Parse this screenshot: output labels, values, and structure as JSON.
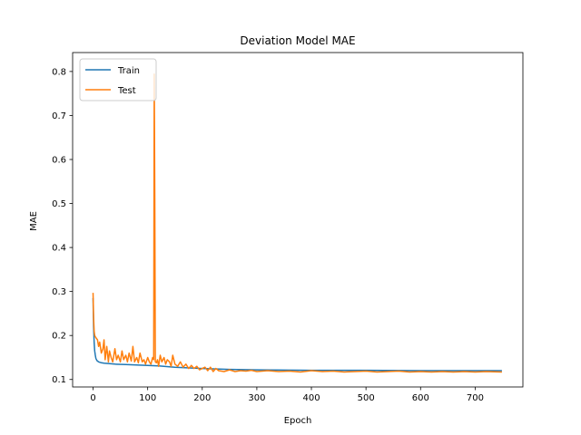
{
  "chart_data": {
    "type": "line",
    "title": "Deviation Model MAE",
    "xlabel": "Epoch",
    "ylabel": "MAE",
    "xlim": [
      -37.5,
      787.5
    ],
    "ylim": [
      0.083,
      0.843
    ],
    "xticks": [
      0,
      100,
      200,
      300,
      400,
      500,
      600,
      700
    ],
    "yticks": [
      0.1,
      0.2,
      0.3,
      0.4,
      0.5,
      0.6,
      0.7,
      0.8
    ],
    "grid": false,
    "legend": "upper left",
    "series": [
      {
        "name": "Train",
        "color": "#1f77b4",
        "x": [
          0,
          1,
          2,
          3,
          4,
          5,
          7,
          10,
          15,
          20,
          30,
          40,
          60,
          80,
          100,
          120,
          150,
          200,
          250,
          300,
          400,
          500,
          600,
          700,
          749
        ],
        "y": [
          0.285,
          0.22,
          0.185,
          0.165,
          0.155,
          0.148,
          0.143,
          0.14,
          0.138,
          0.137,
          0.136,
          0.135,
          0.134,
          0.133,
          0.132,
          0.131,
          0.128,
          0.125,
          0.123,
          0.122,
          0.121,
          0.121,
          0.12,
          0.12,
          0.12
        ]
      },
      {
        "name": "Test",
        "color": "#ff7f0e",
        "x": [
          0,
          1,
          2,
          3,
          5,
          8,
          10,
          12,
          15,
          18,
          20,
          22,
          25,
          28,
          30,
          33,
          36,
          40,
          43,
          46,
          50,
          53,
          56,
          60,
          63,
          66,
          70,
          73,
          76,
          80,
          83,
          86,
          90,
          93,
          96,
          100,
          103,
          106,
          109,
          111,
          112,
          113,
          114,
          116,
          118,
          120,
          123,
          126,
          130,
          133,
          136,
          140,
          143,
          146,
          150,
          155,
          160,
          165,
          170,
          175,
          180,
          185,
          190,
          195,
          200,
          205,
          210,
          215,
          220,
          225,
          230,
          240,
          250,
          260,
          270,
          280,
          290,
          300,
          320,
          340,
          360,
          380,
          400,
          420,
          440,
          460,
          480,
          500,
          520,
          540,
          560,
          580,
          600,
          620,
          640,
          660,
          680,
          700,
          720,
          749
        ],
        "y": [
          0.297,
          0.24,
          0.21,
          0.2,
          0.195,
          0.19,
          0.175,
          0.185,
          0.16,
          0.17,
          0.19,
          0.145,
          0.175,
          0.14,
          0.165,
          0.15,
          0.14,
          0.17,
          0.145,
          0.155,
          0.14,
          0.165,
          0.145,
          0.155,
          0.14,
          0.16,
          0.142,
          0.175,
          0.14,
          0.15,
          0.138,
          0.16,
          0.14,
          0.145,
          0.135,
          0.15,
          0.14,
          0.135,
          0.15,
          0.145,
          0.794,
          0.52,
          0.14,
          0.138,
          0.145,
          0.13,
          0.155,
          0.14,
          0.15,
          0.135,
          0.145,
          0.14,
          0.13,
          0.155,
          0.135,
          0.13,
          0.14,
          0.128,
          0.135,
          0.125,
          0.132,
          0.125,
          0.13,
          0.122,
          0.125,
          0.128,
          0.12,
          0.128,
          0.118,
          0.125,
          0.12,
          0.118,
          0.122,
          0.118,
          0.12,
          0.119,
          0.121,
          0.118,
          0.12,
          0.118,
          0.119,
          0.117,
          0.12,
          0.118,
          0.119,
          0.117,
          0.118,
          0.119,
          0.117,
          0.118,
          0.119,
          0.117,
          0.118,
          0.117,
          0.118,
          0.117,
          0.118,
          0.117,
          0.118,
          0.117
        ]
      }
    ]
  }
}
